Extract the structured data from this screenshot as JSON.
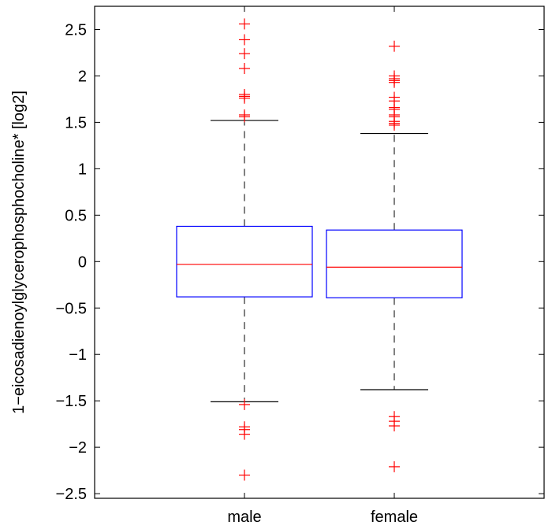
{
  "chart_data": {
    "type": "box",
    "title": "",
    "xlabel": "",
    "ylabel": "1−eicosadienoylglycerophosphocholine* [log2]",
    "categories": [
      "male",
      "female"
    ],
    "ylim": [
      -2.55,
      2.75
    ],
    "yticks": [
      -2.5,
      -2,
      -1.5,
      -1,
      -0.5,
      0,
      0.5,
      1,
      1.5,
      2,
      2.5
    ],
    "ytick_labels": [
      "−2.5",
      "−2",
      "−1.5",
      "−1",
      "−0.5",
      "0",
      "0.5",
      "1",
      "1.5",
      "2",
      "2.5"
    ],
    "grid": false,
    "colors": {
      "box": "#0000ff",
      "median": "#ff0000",
      "outlier": "#ff0000",
      "whisker": "#000000"
    },
    "boxes": [
      {
        "category": "male",
        "q1": -0.38,
        "median": -0.03,
        "q3": 0.38,
        "whisker_low": -1.51,
        "whisker_high": 1.52,
        "outliers": [
          2.56,
          2.39,
          2.24,
          2.08,
          1.8,
          1.78,
          1.76,
          1.58,
          1.56,
          -1.54,
          -1.78,
          -1.81,
          -1.86,
          -2.3
        ]
      },
      {
        "category": "female",
        "q1": -0.39,
        "median": -0.06,
        "q3": 0.34,
        "whisker_low": -1.38,
        "whisker_high": 1.38,
        "outliers": [
          2.32,
          2.0,
          1.97,
          1.95,
          1.93,
          1.77,
          1.73,
          1.66,
          1.64,
          1.58,
          1.56,
          1.51,
          1.49,
          1.47,
          -1.67,
          -1.72,
          -1.77,
          -2.21
        ]
      }
    ]
  }
}
